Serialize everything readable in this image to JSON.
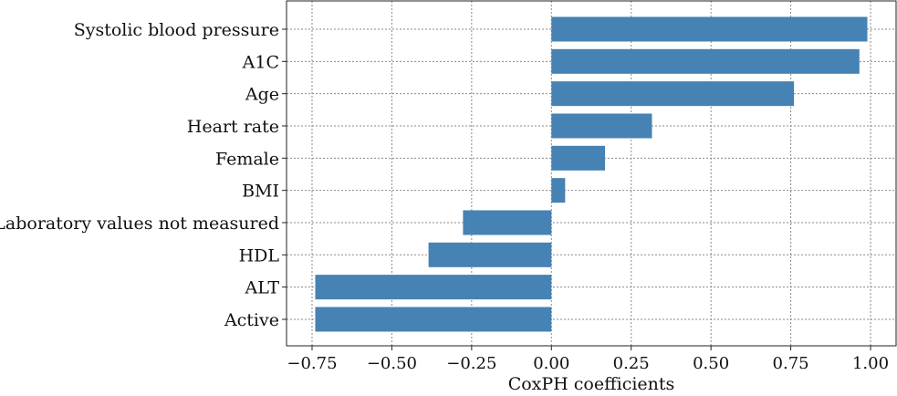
{
  "chart_data": {
    "type": "bar",
    "orientation": "horizontal",
    "categories": [
      "Systolic blood pressure",
      "A1C",
      "Age",
      "Heart rate",
      "Female",
      "BMI",
      "Laboratory values not measured",
      "HDL",
      "ALT",
      "Active"
    ],
    "values": [
      0.99,
      0.965,
      0.76,
      0.315,
      0.168,
      0.043,
      -0.277,
      -0.385,
      -0.74,
      -0.74
    ],
    "xlabel": "CoxPH coefficients",
    "ylabel": "",
    "xlim": [
      -0.83,
      1.08
    ],
    "xticks": [
      -0.75,
      -0.5,
      -0.25,
      0.0,
      0.25,
      0.5,
      0.75,
      1.0
    ],
    "xtick_labels": [
      "−0.75",
      "−0.50",
      "−0.25",
      "0.00",
      "0.25",
      "0.50",
      "0.75",
      "1.00"
    ],
    "grid": true,
    "bar_color": "#4682b4"
  }
}
